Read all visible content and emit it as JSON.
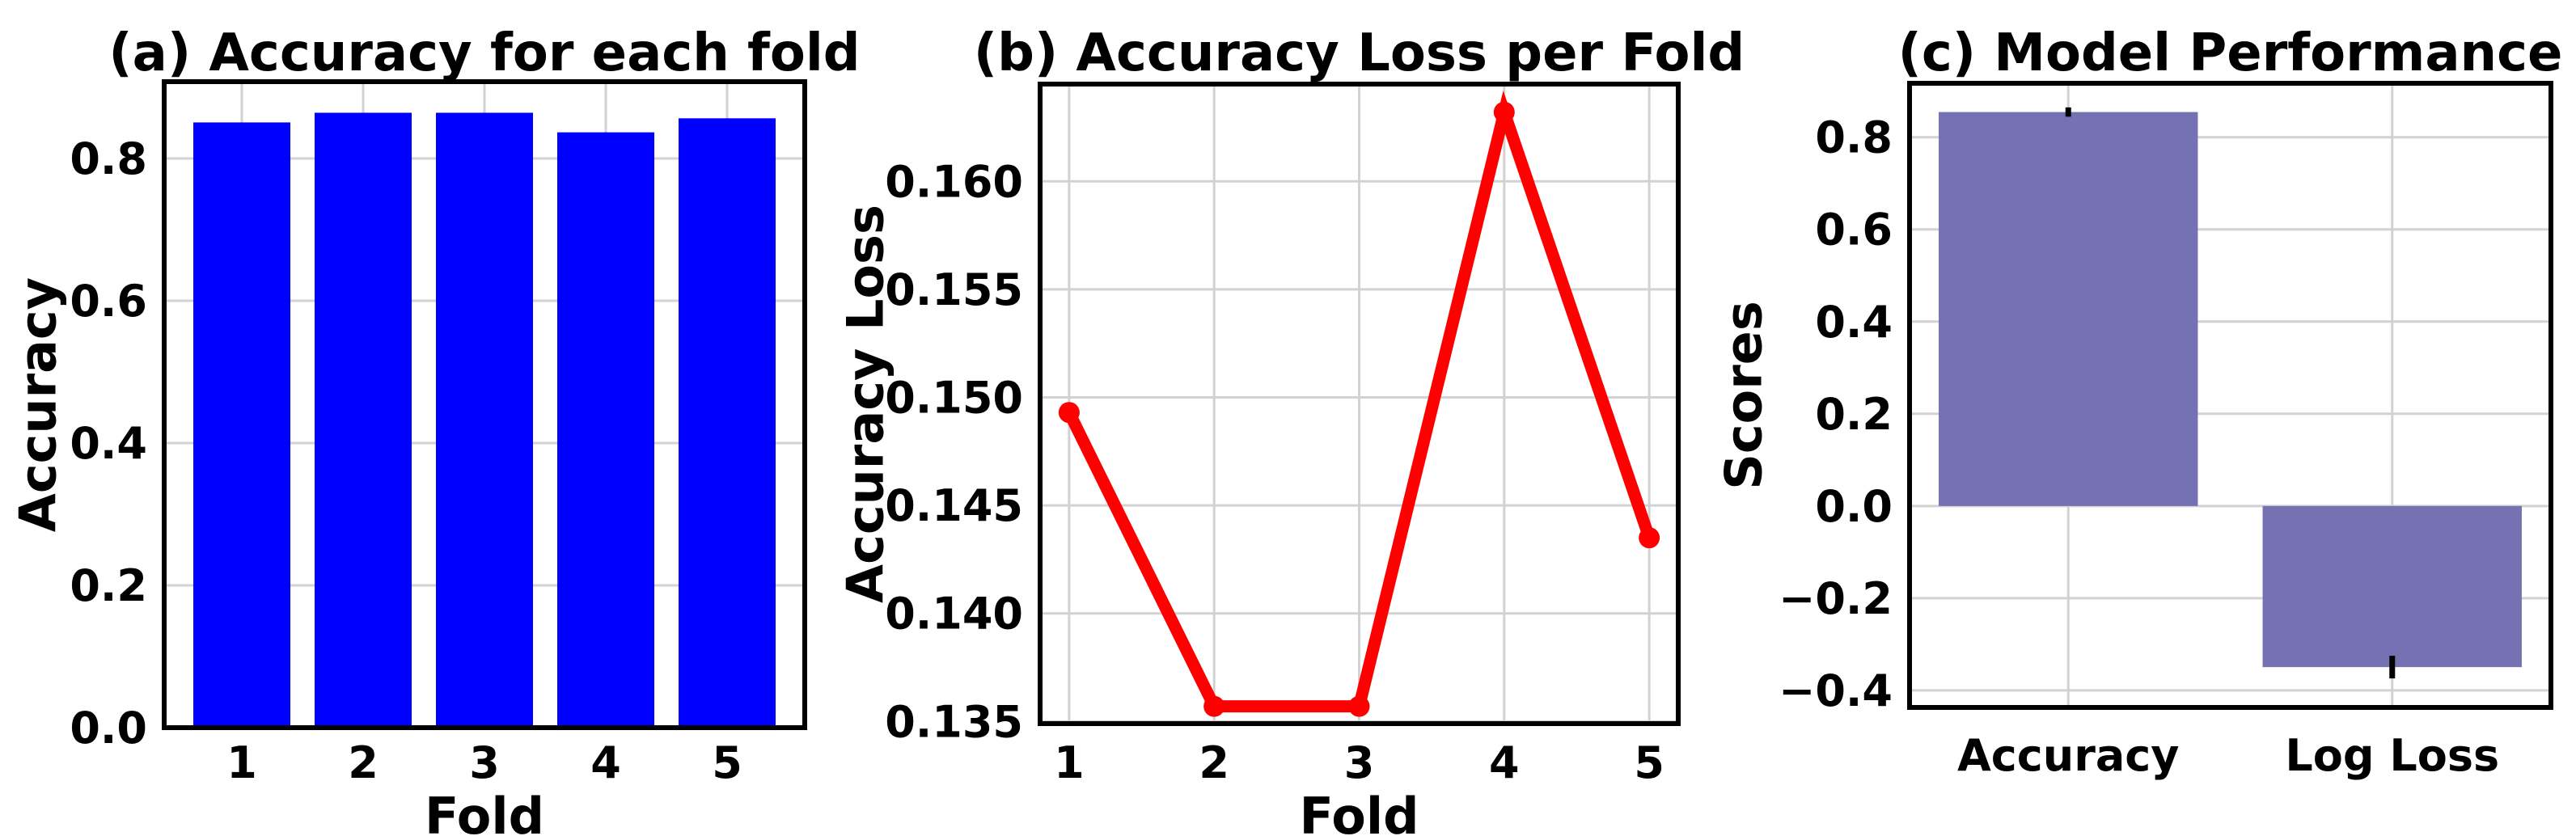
{
  "figure": {
    "background": "#ffffff",
    "text_color": "#000000",
    "grid_color": "#d2d2d2",
    "spine_color": "#000000"
  },
  "chart_data": [
    {
      "type": "bar",
      "panel": "a",
      "title": "(a) Accuracy for each fold",
      "xlabel": "Fold",
      "ylabel": "Accuracy",
      "categories": [
        "1",
        "2",
        "3",
        "4",
        "5"
      ],
      "x": [
        1,
        2,
        3,
        4,
        5
      ],
      "values": [
        0.8507,
        0.8643,
        0.8643,
        0.8368,
        0.8565
      ],
      "bar_width": 0.8,
      "bar_color": "#0000ff",
      "xlim": [
        0.36,
        5.64
      ],
      "ylim": [
        0,
        0.908
      ],
      "yticks": [
        0.0,
        0.2,
        0.4,
        0.6,
        0.8
      ],
      "ytick_labels": [
        "0.0",
        "0.2",
        "0.4",
        "0.6",
        "0.8"
      ],
      "xtick_labels": [
        "1",
        "2",
        "3",
        "4",
        "5"
      ],
      "grid": true
    },
    {
      "type": "line",
      "panel": "b",
      "title": "(b) Accuracy Loss per Fold",
      "xlabel": "Fold",
      "ylabel": "Accuracy Loss",
      "x": [
        1,
        2,
        3,
        4,
        5
      ],
      "values": [
        0.1493,
        0.1357,
        0.1357,
        0.1632,
        0.1435
      ],
      "line_color": "#ff0000",
      "marker": "circle",
      "xlim": [
        0.8,
        5.2
      ],
      "ylim": [
        0.1349,
        0.1645
      ],
      "yticks": [
        0.135,
        0.14,
        0.145,
        0.15,
        0.155,
        0.16
      ],
      "ytick_labels": [
        "0.135",
        "0.140",
        "0.145",
        "0.150",
        "0.155",
        "0.160"
      ],
      "xtick_labels": [
        "1",
        "2",
        "3",
        "4",
        "5"
      ],
      "grid": true
    },
    {
      "type": "bar",
      "panel": "c",
      "title": "(c) Model Performance",
      "xlabel": "",
      "ylabel": "Scores",
      "categories": [
        "Accuracy",
        "Log Loss"
      ],
      "x": [
        0,
        1
      ],
      "values": [
        0.8546,
        -0.3495
      ],
      "errors": [
        0.0101,
        0.0245
      ],
      "bar_width": 0.8,
      "bar_color": "#7472b3",
      "error_color": "#000000",
      "xlim": [
        -0.49,
        1.49
      ],
      "ylim": [
        -0.437,
        0.917
      ],
      "yticks": [
        0.8,
        0.6,
        0.4,
        0.2,
        0.0,
        -0.2,
        -0.4
      ],
      "ytick_labels": [
        "0.8",
        "0.6",
        "0.4",
        "0.2",
        "0.0",
        "−0.2",
        "−0.4"
      ],
      "xtick_labels": [
        "Accuracy",
        "Log Loss"
      ],
      "grid": true
    }
  ]
}
